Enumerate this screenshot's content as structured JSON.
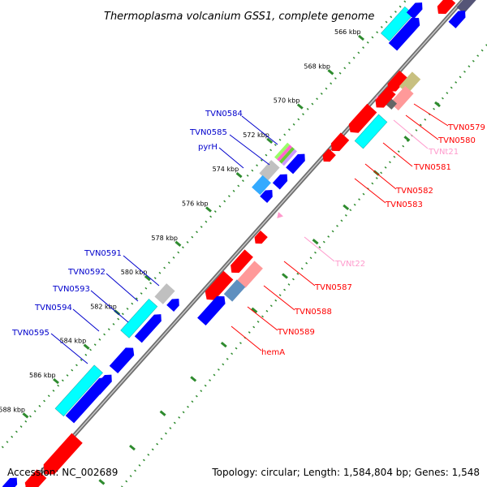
{
  "title": "Thermoplasma volcanium GSS1, complete genome",
  "footer": {
    "accession": "Accession: NC_002689",
    "summary": "Topology: circular; Length: 1,584,804 bp; Genes: 1,548"
  },
  "colors": {
    "forward_cds": "#ff0000",
    "reverse_cds": "#0000ff",
    "forward_label": "#ff0000",
    "reverse_label": "#0000cc",
    "trna": "#ff99cc",
    "cog_cyan": "#00ffff",
    "cog_grey": "#c0c0c0",
    "backbone": "#7a7a7a",
    "tick": "#2e8b2e"
  },
  "ticks": [
    "566 kbp",
    "568 kbp",
    "570 kbp",
    "572 kbp",
    "574 kbp",
    "576 kbp",
    "578 kbp",
    "580 kbp",
    "582 kbp",
    "584 kbp",
    "586 kbp",
    "588 kbp"
  ],
  "left_labels": [
    "TVN0584",
    "TVN0585",
    "pyrH",
    "TVN0591",
    "TVN0592",
    "TVN0593",
    "TVN0594",
    "TVN0595"
  ],
  "right_labels": [
    {
      "text": "TVN0579",
      "kind": "cds"
    },
    {
      "text": "TVN0580",
      "kind": "cds"
    },
    {
      "text": "TVNt21",
      "kind": "trna"
    },
    {
      "text": "TVN0581",
      "kind": "cds"
    },
    {
      "text": "TVN0582",
      "kind": "cds"
    },
    {
      "text": "TVN0583",
      "kind": "cds"
    },
    {
      "text": "TVNt22",
      "kind": "trna"
    },
    {
      "text": "TVN0587",
      "kind": "cds"
    },
    {
      "text": "TVN0588",
      "kind": "cds"
    },
    {
      "text": "TVN0589",
      "kind": "cds"
    },
    {
      "text": "hemA",
      "kind": "cds"
    }
  ]
}
